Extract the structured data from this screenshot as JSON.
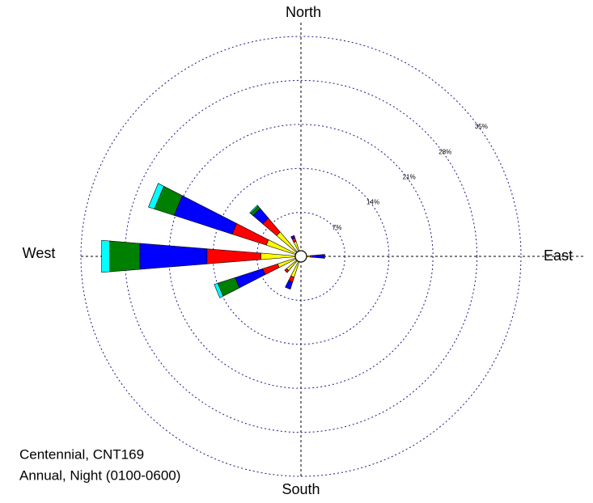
{
  "chart_data": {
    "type": "windrose",
    "direction_labels": {
      "north": "North",
      "east": "East",
      "south": "South",
      "west": "West"
    },
    "annotations": [
      "Centennial, CNT169",
      "Annual, Night (0100-0600)"
    ],
    "x": [
      0,
      22.5,
      45,
      67.5,
      90,
      112.5,
      135,
      157.5,
      180,
      202.5,
      225,
      247.5,
      270,
      292.5,
      315,
      337.5
    ],
    "series": [
      {
        "color": "#ffff00",
        "values": [
          0.6,
          0.3,
          0.3,
          0.3,
          1.5,
          0.3,
          0.3,
          0.3,
          0.5,
          3.5,
          3.0,
          3.9,
          6.4,
          5.8,
          5.1,
          2.5
        ]
      },
      {
        "color": "#ff0000",
        "values": [
          0.2,
          0,
          0,
          0,
          0.3,
          0,
          0,
          0,
          0,
          0.8,
          0.4,
          2.5,
          8.6,
          5.7,
          2.9,
          0.6
        ]
      },
      {
        "color": "#0000ff",
        "values": [
          0,
          0,
          0,
          0,
          2.0,
          0,
          0,
          0,
          0,
          1.2,
          0,
          4.6,
          10.7,
          9.7,
          2.0,
          0.4
        ]
      },
      {
        "color": "#008000",
        "values": [
          0,
          0,
          0,
          0,
          0,
          0,
          0,
          0,
          0,
          0,
          0,
          2.9,
          4.8,
          3.3,
          0.5,
          0
        ]
      },
      {
        "color": "#00ffff",
        "values": [
          0,
          0,
          0,
          0,
          0,
          0,
          0,
          0,
          0,
          0,
          0,
          0.6,
          1.3,
          1.0,
          0.2,
          0
        ]
      }
    ],
    "rlim": [
      0,
      35
    ],
    "rticks": [
      {
        "value": 7,
        "label": "7%"
      },
      {
        "value": 14,
        "label": "14%"
      },
      {
        "value": 21,
        "label": "21%"
      },
      {
        "value": 28,
        "label": "28%"
      },
      {
        "value": 35,
        "label": "35%"
      }
    ],
    "grid": true
  }
}
